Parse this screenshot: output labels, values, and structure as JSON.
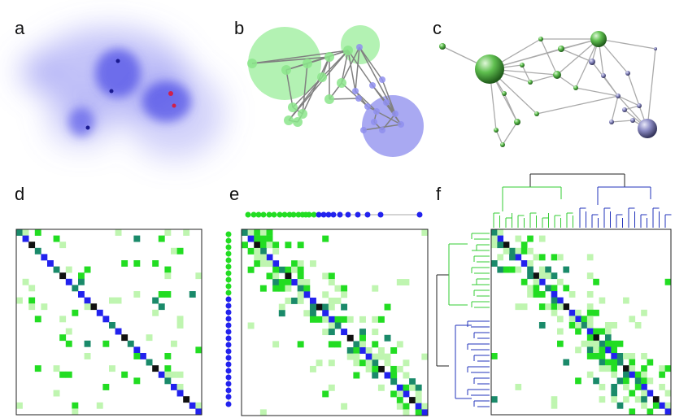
{
  "panels": [
    {
      "letter": "a"
    },
    {
      "letter": "b"
    },
    {
      "letter": "c"
    },
    {
      "letter": "d"
    },
    {
      "letter": "e"
    },
    {
      "letter": "f"
    }
  ],
  "colors": {
    "green": "#22dd22",
    "blue": "#2222ee",
    "dark": "#111111",
    "teal": "#1a8a6a",
    "light_green": "#bff5b0",
    "edge_gray": "#888888",
    "dendro_green": "#33cc33",
    "dendro_blue": "#2233bb"
  },
  "matrix_size": 30
}
